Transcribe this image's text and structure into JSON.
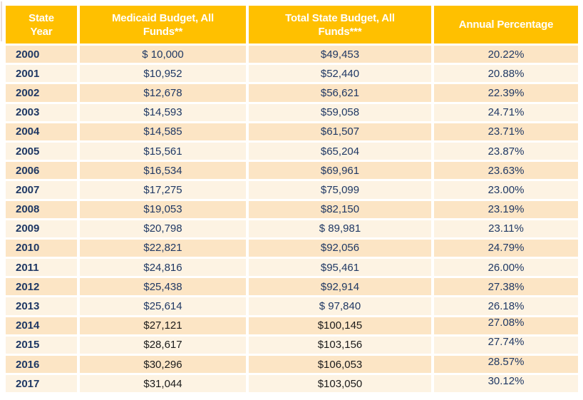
{
  "colors": {
    "page_bg": "#FFFFFF",
    "gold": "#FFC000",
    "header_text": "#FFFFFF",
    "navy": "#1F3864",
    "money_black": "#1B1B1B",
    "band_dark": "#FCE5C5",
    "band_light": "#FDF3E3",
    "separator": "#FFFFFF",
    "edge_line": "#EADDD8"
  },
  "table": {
    "columns": [
      {
        "label": "State\nYear"
      },
      {
        "label": "Medicaid Budget, All\nFunds**"
      },
      {
        "label": "Total State Budget, All\nFunds***"
      },
      {
        "label": "Annual Percentage"
      }
    ],
    "rows": [
      {
        "year": "2000",
        "medicaid": "$ 10,000",
        "total": "$49,453",
        "pct": "20.22%",
        "band": "dark",
        "money_black": false,
        "pct_raised": false
      },
      {
        "year": "2001",
        "medicaid": "$10,952",
        "total": "$52,440",
        "pct": "20.88%",
        "band": "light",
        "money_black": false,
        "pct_raised": false
      },
      {
        "year": "2002",
        "medicaid": "$12,678",
        "total": "$56,621",
        "pct": "22.39%",
        "band": "dark",
        "money_black": false,
        "pct_raised": false
      },
      {
        "year": "2003",
        "medicaid": "$14,593",
        "total": "$59,058",
        "pct": "24.71%",
        "band": "light",
        "money_black": false,
        "pct_raised": false
      },
      {
        "year": "2004",
        "medicaid": "$14,585",
        "total": "$61,507",
        "pct": "23.71%",
        "band": "dark",
        "money_black": false,
        "pct_raised": false
      },
      {
        "year": "2005",
        "medicaid": "$15,561",
        "total": "$65,204",
        "pct": "23.87%",
        "band": "light",
        "money_black": false,
        "pct_raised": false
      },
      {
        "year": "2006",
        "medicaid": "$16,534",
        "total": "$69,961",
        "pct": "23.63%",
        "band": "dark",
        "money_black": false,
        "pct_raised": false
      },
      {
        "year": "2007",
        "medicaid": "$17,275",
        "total": "$75,099",
        "pct": "23.00%",
        "band": "light",
        "money_black": false,
        "pct_raised": false
      },
      {
        "year": "2008",
        "medicaid": "$19,053",
        "total": "$82,150",
        "pct": "23.19%",
        "band": "dark",
        "money_black": false,
        "pct_raised": false
      },
      {
        "year": "2009",
        "medicaid": "$20,798",
        "total": "$ 89,981",
        "pct": "23.11%",
        "band": "light",
        "money_black": false,
        "pct_raised": false
      },
      {
        "year": "2010",
        "medicaid": "$22,821",
        "total": "$92,056",
        "pct": "24.79%",
        "band": "dark",
        "money_black": false,
        "pct_raised": false
      },
      {
        "year": "2011",
        "medicaid": "$24,816",
        "total": "$95,461",
        "pct": "26.00%",
        "band": "light",
        "money_black": false,
        "pct_raised": false
      },
      {
        "year": "2012",
        "medicaid": "$25,438",
        "total": "$92,914",
        "pct": "27.38%",
        "band": "dark",
        "money_black": false,
        "pct_raised": false
      },
      {
        "year": "2013",
        "medicaid": "$25,614",
        "total": "$ 97,840",
        "pct": "26.18%",
        "band": "light",
        "money_black": false,
        "pct_raised": false
      },
      {
        "year": "2014",
        "medicaid": "$27,121",
        "total": "$100,145",
        "pct": "27.08%",
        "band": "dark",
        "money_black": true,
        "pct_raised": true
      },
      {
        "year": "2015",
        "medicaid": "$28,617",
        "total": "$103,156",
        "pct": "27.74%",
        "band": "light",
        "money_black": true,
        "pct_raised": true
      },
      {
        "year": "2016",
        "medicaid": "$30,296",
        "total": "$106,053",
        "pct": "28.57%",
        "band": "dark",
        "money_black": true,
        "pct_raised": true
      },
      {
        "year": "2017",
        "medicaid": "$31,044",
        "total": "$103,050",
        "pct": "30.12%",
        "band": "light",
        "money_black": true,
        "pct_raised": true
      }
    ]
  }
}
